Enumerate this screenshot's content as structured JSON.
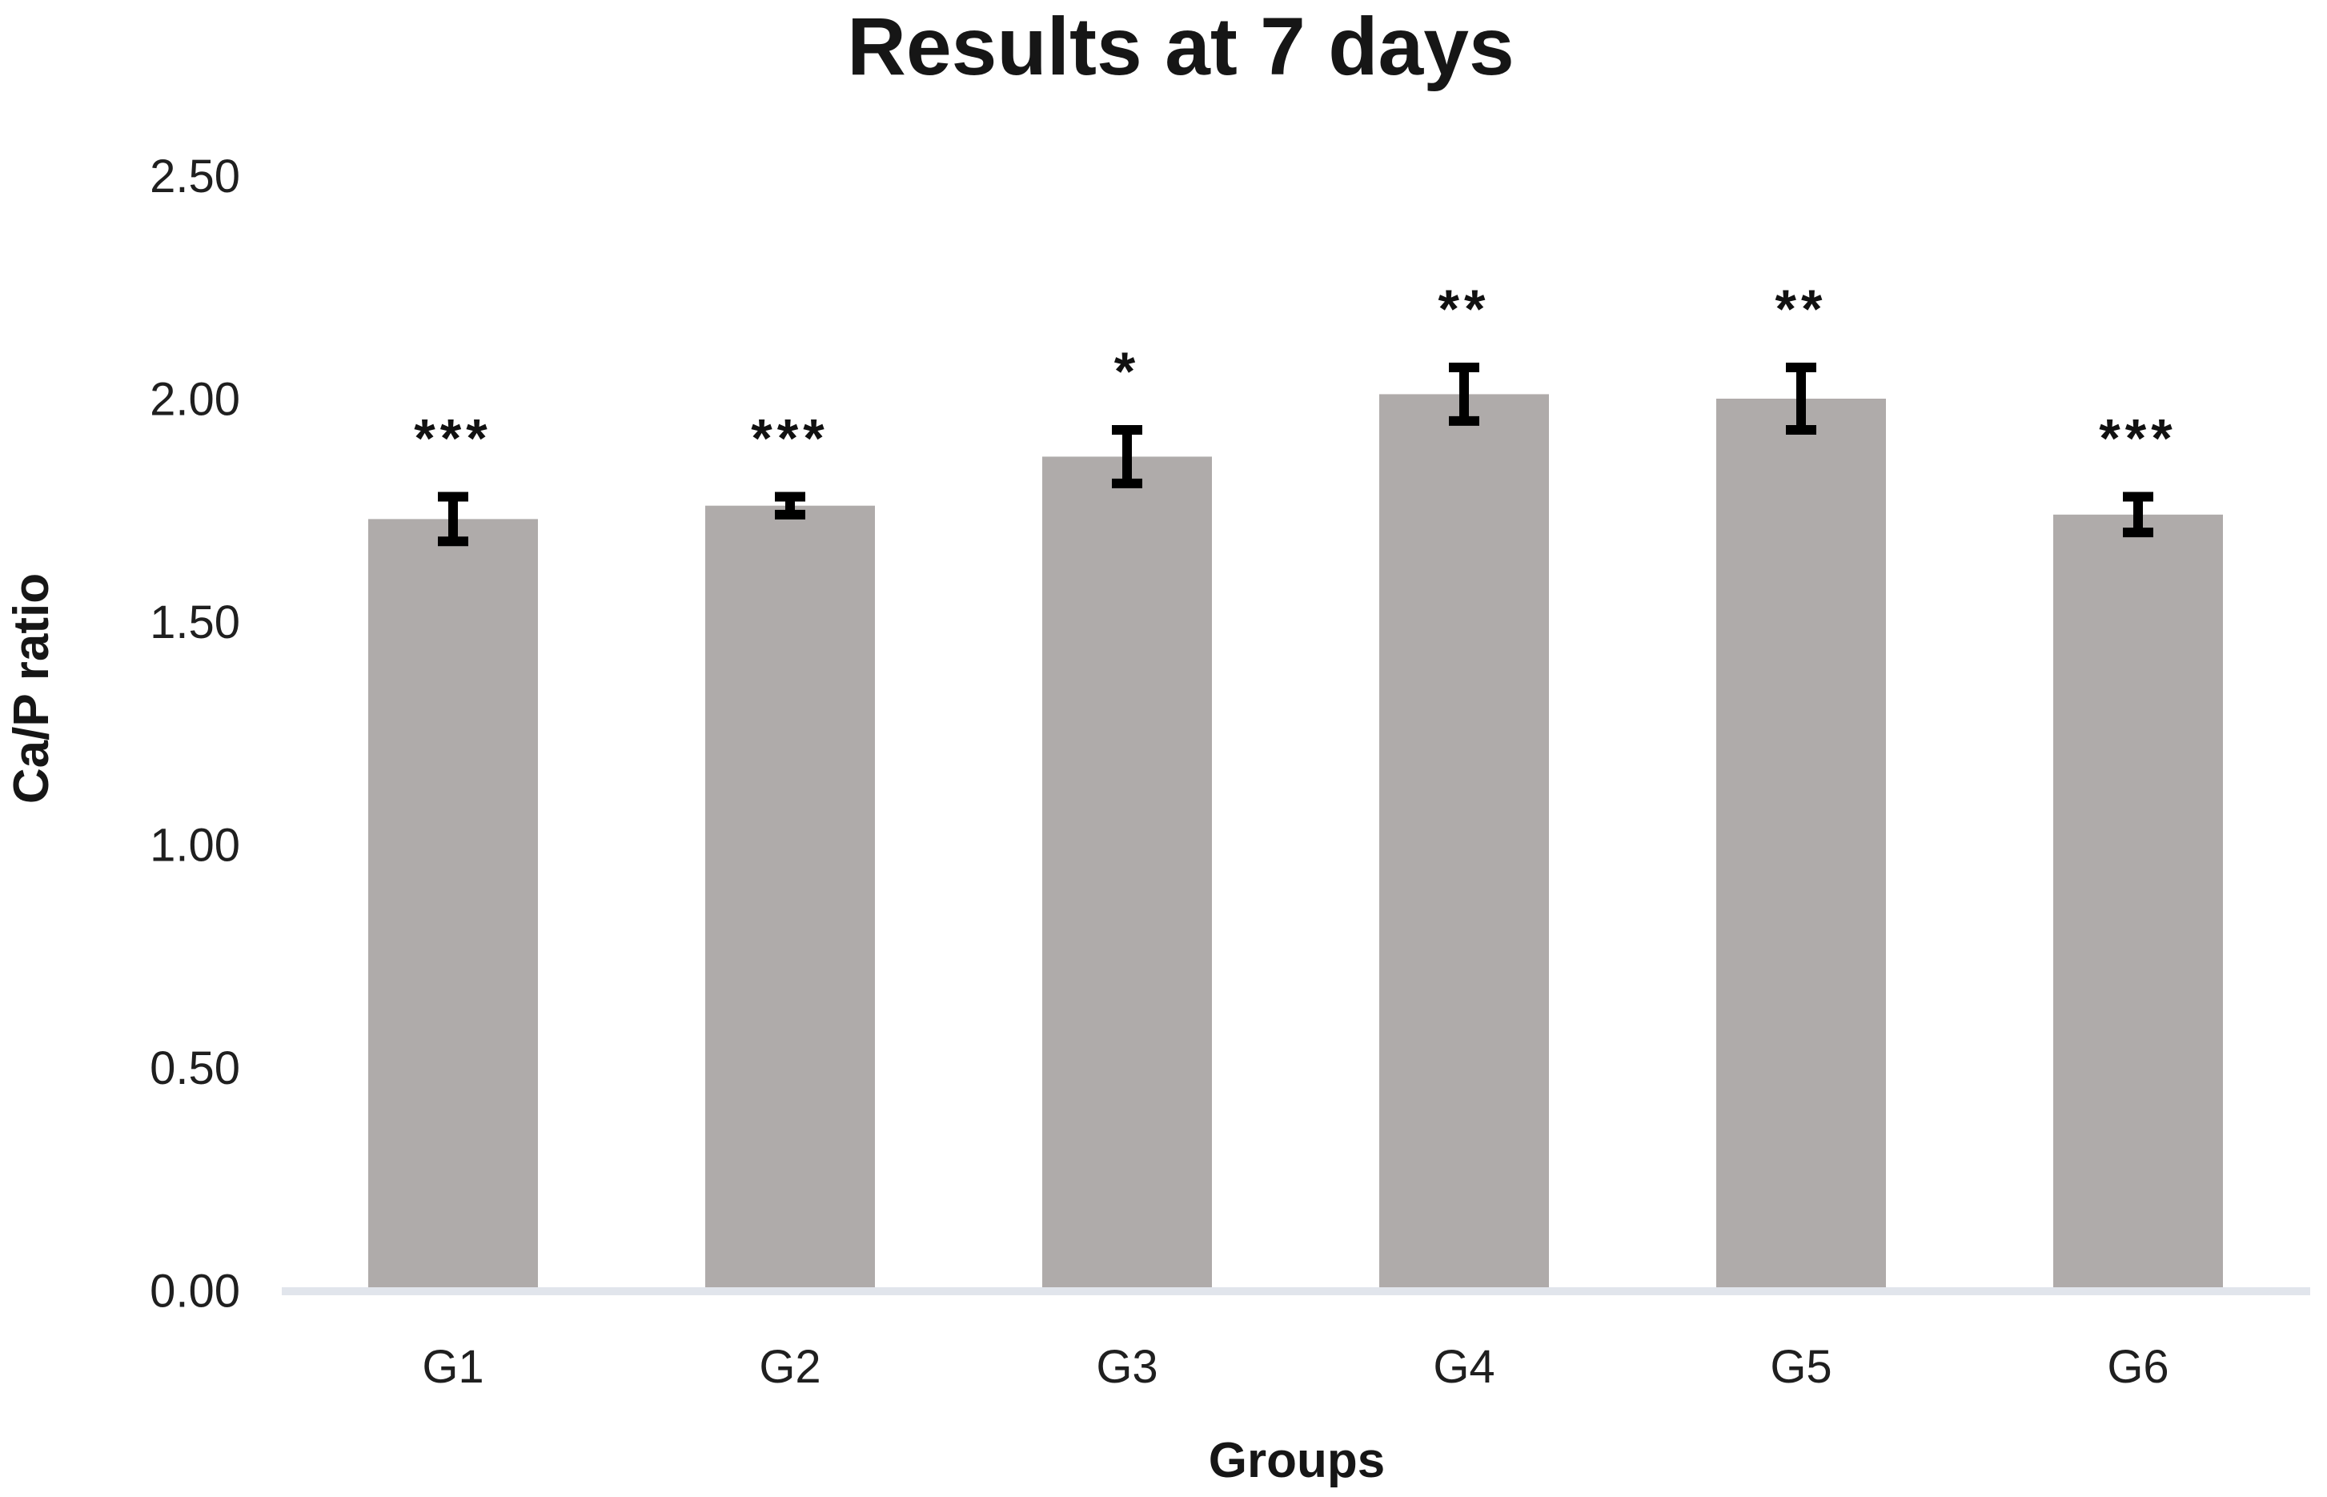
{
  "page": {
    "background_color": "#ffffff"
  },
  "chart_data": {
    "type": "bar",
    "title": "Results at 7 days",
    "xlabel": "Groups",
    "ylabel": "Ca/P ratio",
    "categories": [
      "G1",
      "G2",
      "G3",
      "G4",
      "G5",
      "G6"
    ],
    "values": [
      1.73,
      1.76,
      1.87,
      2.01,
      2.0,
      1.74
    ],
    "error_bars": [
      0.05,
      0.02,
      0.06,
      0.06,
      0.07,
      0.04
    ],
    "significance_labels": [
      "***",
      "***",
      "*",
      "**",
      "**",
      "***"
    ],
    "ytick_labels": [
      "0.00",
      "0.50",
      "1.00",
      "1.50",
      "2.00",
      "2.50"
    ],
    "ytick_values": [
      0.0,
      0.5,
      1.0,
      1.5,
      2.0,
      2.5
    ],
    "ylim": [
      0.0,
      2.5
    ],
    "grid": false,
    "legend": false,
    "bar_color": "#afabaa",
    "axis_line_color": "#e1e5ec",
    "error_bar_color": "#000000",
    "text_color": "#161616"
  }
}
